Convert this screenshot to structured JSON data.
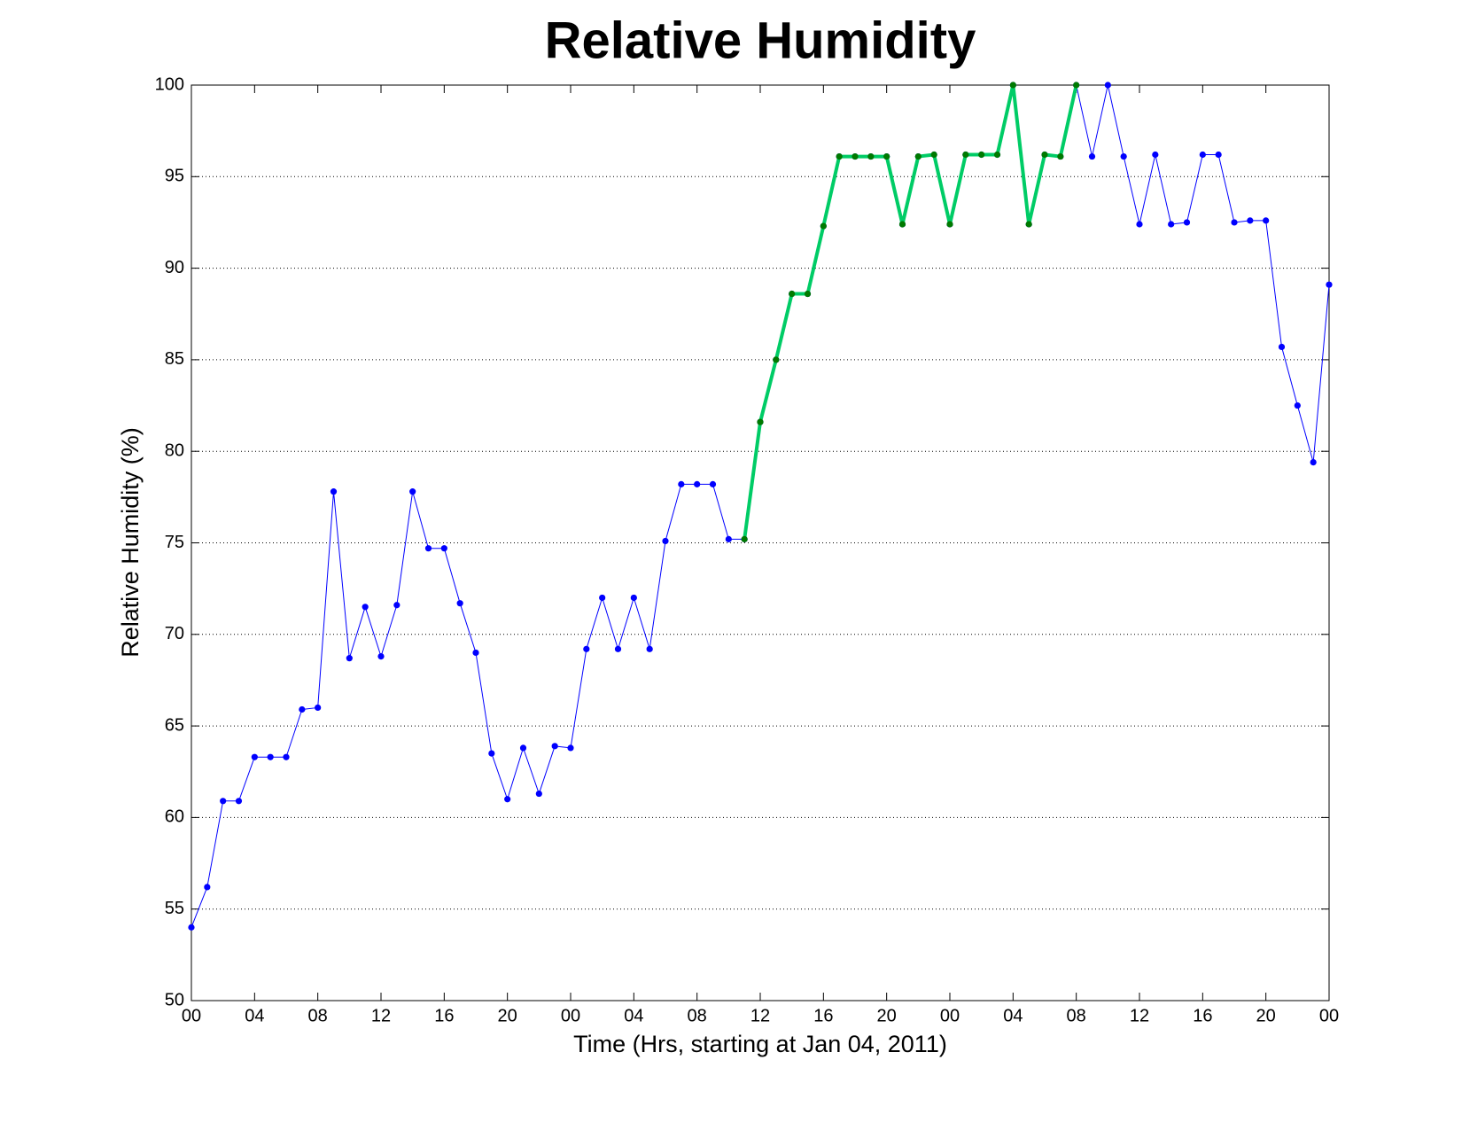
{
  "chart_data": {
    "type": "line",
    "title": "Relative Humidity",
    "x_label": "Time (Hrs, starting at Jan 04, 2011)",
    "y_label": "Relative Humidity (%)",
    "xlim": [
      0,
      72
    ],
    "ylim": [
      50,
      100
    ],
    "xticks": [
      {
        "value": 0,
        "label": "00"
      },
      {
        "value": 4,
        "label": "04"
      },
      {
        "value": 8,
        "label": "08"
      },
      {
        "value": 12,
        "label": "12"
      },
      {
        "value": 16,
        "label": "16"
      },
      {
        "value": 20,
        "label": "20"
      },
      {
        "value": 24,
        "label": "00"
      },
      {
        "value": 28,
        "label": "04"
      },
      {
        "value": 32,
        "label": "08"
      },
      {
        "value": 36,
        "label": "12"
      },
      {
        "value": 40,
        "label": "16"
      },
      {
        "value": 44,
        "label": "20"
      },
      {
        "value": 48,
        "label": "00"
      },
      {
        "value": 52,
        "label": "04"
      },
      {
        "value": 56,
        "label": "08"
      },
      {
        "value": 60,
        "label": "12"
      },
      {
        "value": 64,
        "label": "16"
      },
      {
        "value": 68,
        "label": "20"
      },
      {
        "value": 72,
        "label": "00"
      }
    ],
    "yticks": [
      50,
      55,
      60,
      65,
      70,
      75,
      80,
      85,
      90,
      95,
      100
    ],
    "grid": "y",
    "series": [
      {
        "color": "#0000ff",
        "marker_color": "#0000ff",
        "linewidth": 1,
        "x": [
          0,
          1,
          2,
          3,
          4,
          5,
          6,
          7,
          8,
          9,
          10,
          11,
          12,
          13,
          14,
          15,
          16,
          17,
          18,
          19,
          20,
          21,
          22,
          23,
          24,
          25,
          26,
          27,
          28,
          29,
          30,
          31,
          32,
          33,
          34,
          35,
          36,
          37,
          38,
          39,
          40,
          41,
          42,
          43,
          44,
          45,
          46,
          47,
          48,
          49,
          50,
          51,
          52,
          53,
          54,
          55,
          56,
          57,
          58,
          59,
          60,
          61,
          62,
          63,
          64,
          65,
          66,
          67,
          68,
          69,
          70,
          71,
          72
        ],
        "values": [
          54.0,
          56.2,
          60.9,
          60.9,
          63.3,
          63.3,
          63.3,
          65.9,
          66.0,
          77.8,
          68.7,
          71.5,
          68.8,
          71.6,
          77.8,
          74.7,
          74.7,
          71.7,
          69.0,
          63.5,
          61.0,
          63.8,
          61.3,
          63.9,
          63.8,
          69.2,
          72.0,
          69.2,
          72.0,
          69.2,
          75.1,
          78.2,
          78.2,
          78.2,
          75.2,
          75.2,
          81.6,
          85.0,
          88.6,
          88.6,
          92.3,
          96.1,
          96.1,
          96.1,
          96.1,
          92.4,
          96.1,
          96.2,
          92.4,
          96.2,
          96.2,
          96.2,
          100,
          92.4,
          96.2,
          96.1,
          100,
          96.1,
          100,
          96.1,
          92.4,
          96.2,
          92.4,
          92.5,
          96.2,
          96.2,
          92.5,
          92.6,
          92.6,
          85.7,
          82.5,
          79.4,
          89.1
        ]
      },
      {
        "color": "#00cc66",
        "marker_color": "#007a00",
        "linewidth": 4,
        "x": [
          35,
          36,
          37,
          38,
          39,
          40,
          41,
          42,
          43,
          44,
          45,
          46,
          47,
          48,
          49,
          50,
          51,
          52,
          53,
          54,
          55,
          56
        ],
        "values": [
          75.2,
          81.6,
          85.0,
          88.6,
          88.6,
          92.3,
          96.1,
          96.1,
          96.1,
          96.1,
          92.4,
          96.1,
          96.2,
          92.4,
          96.2,
          96.2,
          96.2,
          100,
          92.4,
          96.2,
          96.1,
          100
        ]
      }
    ]
  }
}
